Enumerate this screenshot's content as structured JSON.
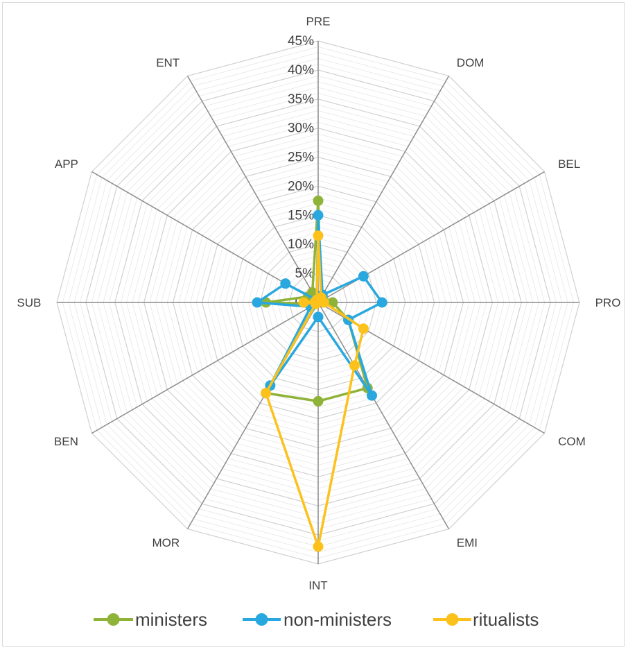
{
  "chart_data": {
    "type": "radar",
    "categories": [
      "PRE",
      "DOM",
      "BEL",
      "PRO",
      "COM",
      "EMI",
      "INT",
      "MOR",
      "BEN",
      "SUB",
      "APP",
      "ENT"
    ],
    "rlim": [
      0,
      45
    ],
    "rticks": [
      0,
      5,
      10,
      15,
      20,
      25,
      30,
      35,
      40,
      45
    ],
    "rtick_labels": [
      "0%",
      "5%",
      "10%",
      "15%",
      "20%",
      "25%",
      "30%",
      "35%",
      "40%",
      "45%"
    ],
    "grid": true,
    "legend_position": "bottom",
    "series": [
      {
        "name": "ministers",
        "color": "#8fb339",
        "values": [
          17.5,
          1,
          1,
          2.5,
          6,
          17,
          17,
          18,
          0.5,
          9,
          2,
          2
        ]
      },
      {
        "name": "non-ministers",
        "color": "#29a8e0",
        "values": [
          15,
          1.5,
          9,
          11,
          6,
          18.5,
          2.5,
          16.5,
          1.5,
          10.5,
          6.5,
          0.5
        ]
      },
      {
        "name": "ritualists",
        "color": "#fcc21b",
        "values": [
          11.5,
          1,
          0.5,
          1,
          9,
          12.5,
          42,
          18,
          0.5,
          2.5,
          0.5,
          0.5
        ]
      }
    ]
  }
}
